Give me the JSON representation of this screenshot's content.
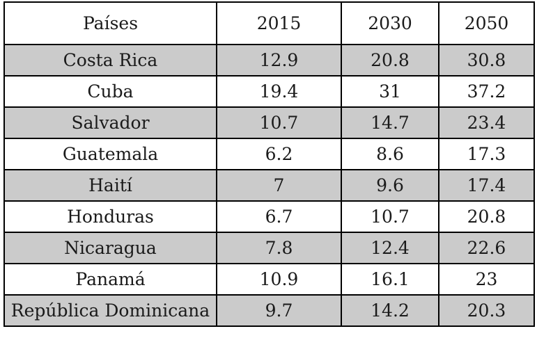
{
  "table": {
    "headers": [
      "Países",
      "2015",
      "2030",
      "2050"
    ],
    "rows": [
      [
        "Costa Rica",
        "12.9",
        "20.8",
        "30.8"
      ],
      [
        "Cuba",
        "19.4",
        "31",
        "37.2"
      ],
      [
        "Salvador",
        "10.7",
        "14.7",
        "23.4"
      ],
      [
        "Guatemala",
        "6.2",
        "8.6",
        "17.3"
      ],
      [
        "Haití",
        "7",
        "9.6",
        "17.4"
      ],
      [
        "Honduras",
        "6.7",
        "10.7",
        "20.8"
      ],
      [
        "Nicaragua",
        "7.8",
        "12.4",
        "22.6"
      ],
      [
        "Panamá",
        "10.9",
        "16.1",
        "23"
      ],
      [
        "República Dominicana",
        "9.7",
        "14.2",
        "20.3"
      ]
    ]
  },
  "colors": {
    "shaded_row": "#cbcbcb",
    "border": "#000000",
    "text": "#1a1a1a"
  }
}
